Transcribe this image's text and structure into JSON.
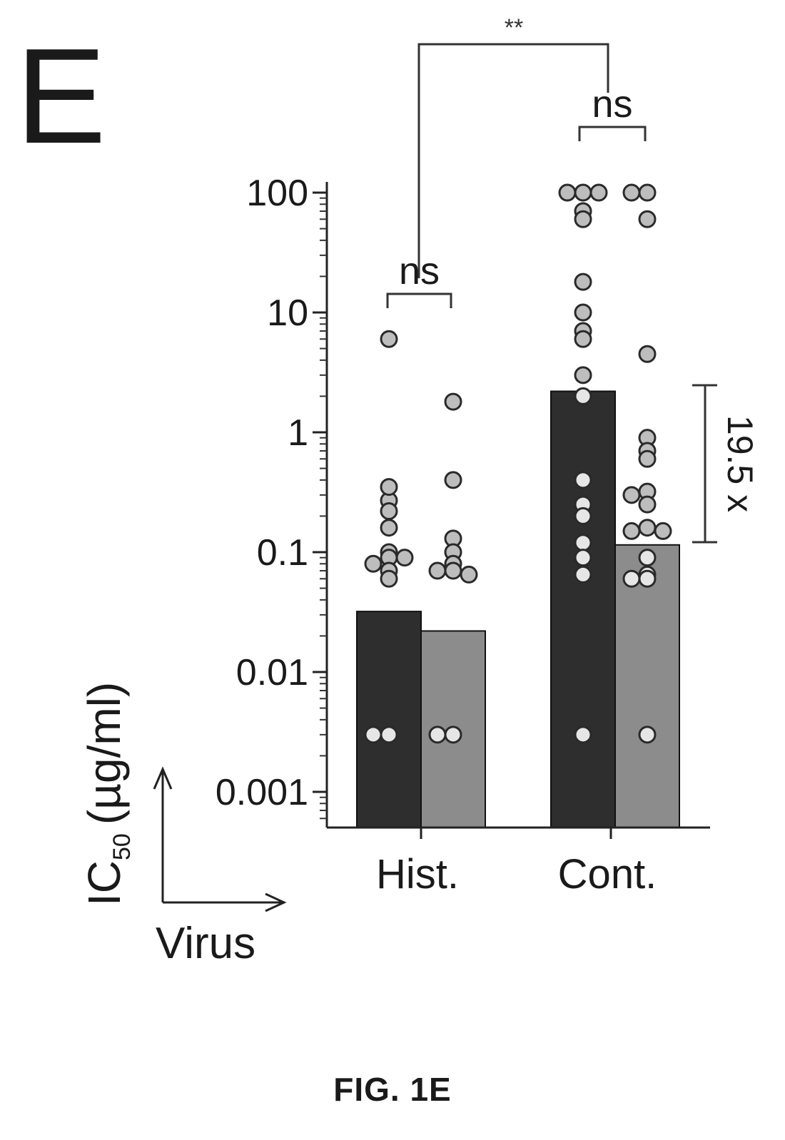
{
  "panel_label": "E",
  "caption": "FIG. 1E",
  "chart_data": {
    "type": "bar",
    "yscale": "log",
    "ylim": [
      0.0005,
      150
    ],
    "ylabel": "IC50 (µg/ml)",
    "ylabel_main": "IC",
    "ylabel_sub": "50",
    "ylabel_unit": "(µg/ml)",
    "xlabel": "Virus",
    "grid": false,
    "categories": [
      "Hist.",
      "Cont."
    ],
    "y_ticks": [
      {
        "value": 100,
        "label": "100"
      },
      {
        "value": 10,
        "label": "10"
      },
      {
        "value": 1,
        "label": "1"
      },
      {
        "value": 0.1,
        "label": "0.1"
      },
      {
        "value": 0.01,
        "label": "0.01"
      },
      {
        "value": 0.001,
        "label": "0.001"
      }
    ],
    "series": [
      {
        "color": "#2e2e2e",
        "values": [
          0.032,
          2.2
        ],
        "points": [
          [
            6,
            0.27,
            0.35,
            0.22,
            0.16,
            0.1,
            0.09,
            0.08,
            0.07,
            0.06,
            0.09,
            0.003,
            0.003
          ],
          [
            100,
            100,
            100,
            70,
            60,
            18,
            10,
            7,
            6,
            3,
            2,
            0.4,
            0.25,
            0.2,
            0.12,
            0.09,
            0.065,
            0.003
          ]
        ]
      },
      {
        "color": "#8c8c8c",
        "values": [
          0.022,
          0.115
        ],
        "points": [
          [
            1.8,
            0.4,
            0.13,
            0.1,
            0.08,
            0.07,
            0.07,
            0.065,
            0.003,
            0.003
          ],
          [
            100,
            100,
            60,
            4.5,
            0.9,
            0.7,
            0.6,
            0.32,
            0.3,
            0.25,
            0.16,
            0.15,
            0.15,
            0.09,
            0.065,
            0.06,
            0.06,
            0.003
          ]
        ]
      }
    ],
    "annotations": [
      {
        "label": "ns",
        "between": "Hist. series"
      },
      {
        "label": "ns",
        "between": "Cont. series"
      },
      {
        "label": "**",
        "between": "Hist. vs Cont."
      },
      {
        "label": "19.5 x",
        "between": "Cont. bar means"
      }
    ]
  }
}
